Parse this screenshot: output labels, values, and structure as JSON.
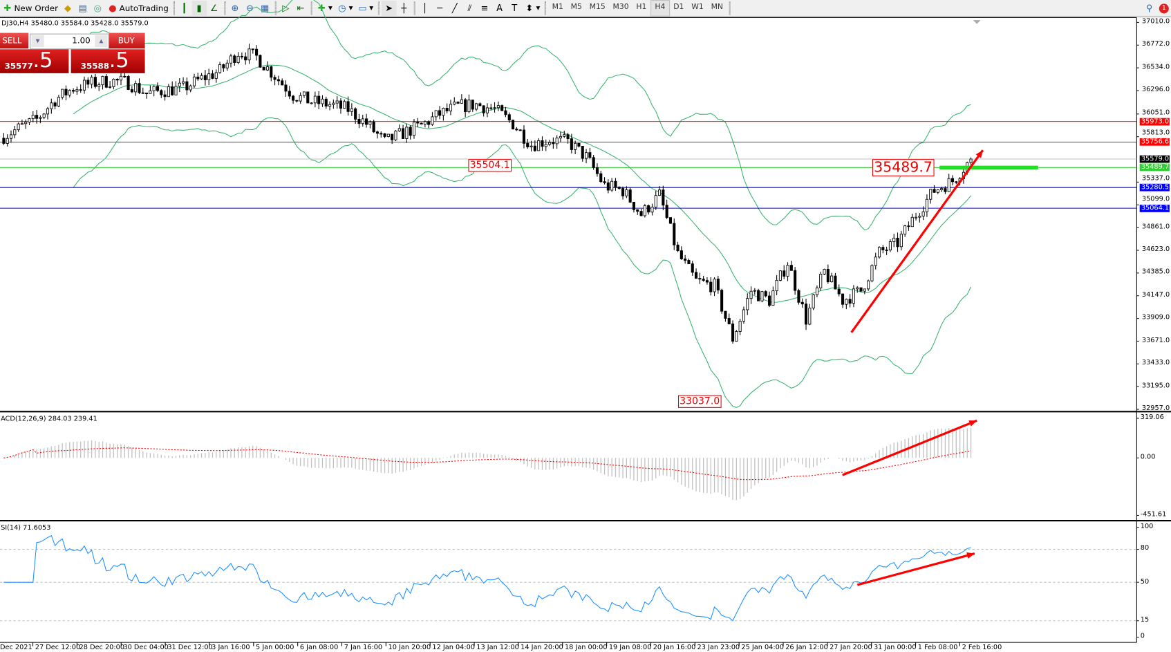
{
  "toolbar": {
    "new_order": "New Order",
    "autotrading": "AutoTrading",
    "timeframes": [
      "M1",
      "M5",
      "M15",
      "M30",
      "H1",
      "H4",
      "D1",
      "W1",
      "MN"
    ],
    "active_timeframe": "H4",
    "notification_count": "1"
  },
  "chart": {
    "symbol_info": "DJ30,H4  35480.0 35584.0 35428.0 35579.0",
    "one_click": {
      "sell_label": "SELL",
      "buy_label": "BUY",
      "lot": "1.00",
      "sell_price_main": "35577",
      "sell_price_big": ".5",
      "buy_price_main": "35588",
      "buy_price_big": ".5"
    },
    "price_ticks": [
      "37010.0",
      "36772.0",
      "36534.0",
      "36296.0",
      "36051.0",
      "35813.0",
      "35337.0",
      "35099.0",
      "34861.0",
      "34623.0",
      "34385.0",
      "34147.0",
      "33909.0",
      "33671.0",
      "33433.0",
      "33195.0",
      "32957.0"
    ],
    "price_range": [
      32957.0,
      37010.0
    ],
    "levels": [
      {
        "price": 35973.0,
        "label": "35973.0",
        "color": "#ff0000"
      },
      {
        "price": 35756.6,
        "label": "35756.6",
        "color": "#ff0000"
      },
      {
        "price": 35579.0,
        "label": "35579.0",
        "color": "#000000",
        "line_color": "#c0c0c0"
      },
      {
        "price": 35489.7,
        "label": "35489.7",
        "color": "#32cd32"
      },
      {
        "price": 35280.5,
        "label": "35280.5",
        "color": "#0000ff"
      },
      {
        "price": 35064.1,
        "label": "35064.1",
        "color": "#0000ff"
      }
    ],
    "price_labels": [
      {
        "text": "35504.1",
        "price": 35504.1
      },
      {
        "text": "33037.0",
        "price": 33037.0
      },
      {
        "text": "35489.7",
        "price": 35489.7
      }
    ],
    "price_path": [
      35797,
      35900,
      35993,
      36200,
      36321,
      36370,
      36400,
      36380,
      36267,
      36300,
      36321,
      36420,
      36501,
      36700,
      36650,
      36450,
      36250,
      36180,
      36150,
      36100,
      35950,
      35758,
      35850,
      35930,
      36050,
      36130,
      36150,
      36100,
      35950,
      35730,
      35780,
      35760,
      35600,
      35300,
      35250,
      35000,
      35200,
      34585,
      34300,
      34250,
      33700,
      34200,
      34100,
      34500,
      33900,
      34400,
      34100,
      34200,
      34600,
      34700,
      35000,
      35250,
      35350,
      35579
    ],
    "bull_color": "#ffffff",
    "bear_color": "#000000",
    "bands_color": "#3cb371",
    "arrow_color": "#ff0000"
  },
  "macd": {
    "label": "ACD(12,26,9) 284.03 239.41",
    "ticks": [
      "319.06",
      "0.00",
      "-451.61"
    ],
    "hist_color": "#c0c0c0",
    "signal_color": "#ff0000"
  },
  "rsi": {
    "label": "SI(14) 71.6053",
    "ticks": [
      "100",
      "80",
      "50",
      "15",
      "0"
    ],
    "line_color": "#1e90ff"
  },
  "time_axis": [
    "Dec 2021",
    "27 Dec 12:00",
    "28 Dec 20:00",
    "30 Dec 04:00",
    "31 Dec 12:00",
    "3 Jan 16:00",
    "5 Jan 00:00",
    "6 Jan 08:00",
    "7 Jan 16:00",
    "10 Jan 20:00",
    "12 Jan 04:00",
    "13 Jan 12:00",
    "14 Jan 20:00",
    "18 Jan 00:00",
    "19 Jan 08:00",
    "20 Jan 16:00",
    "23 Jan 23:00",
    "25 Jan 04:00",
    "26 Jan 12:00",
    "27 Jan 20:00",
    "31 Jan 00:00",
    "1 Feb 08:00",
    "2 Feb 16:00"
  ]
}
